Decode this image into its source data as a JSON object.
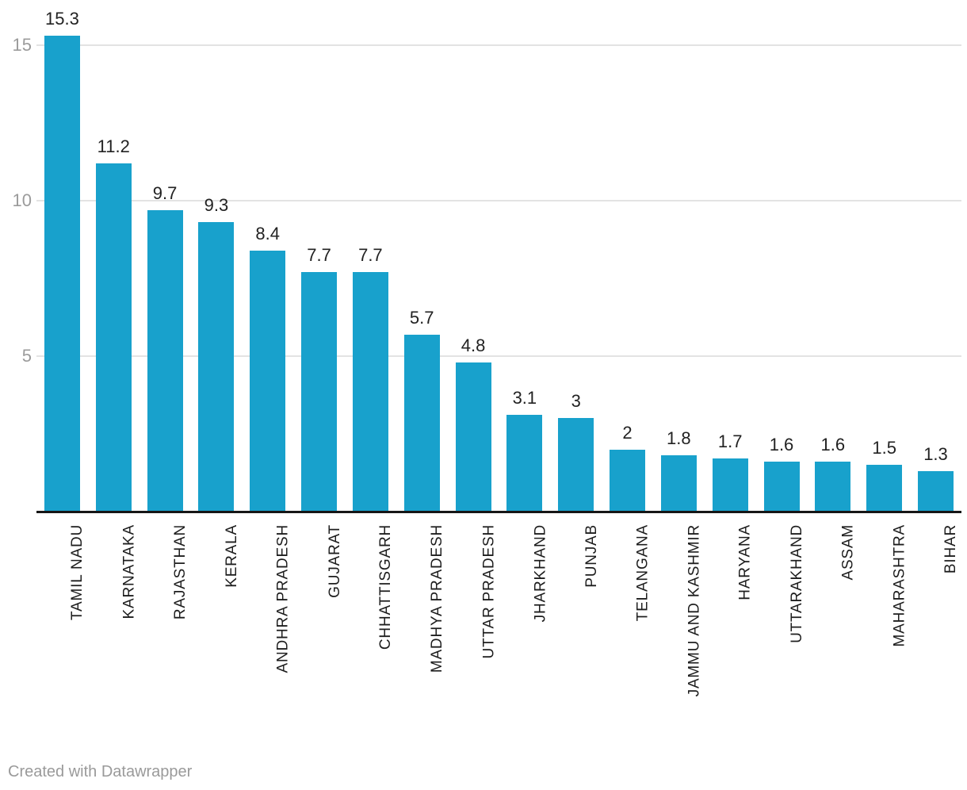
{
  "chart_data": {
    "type": "bar",
    "categories": [
      "TAMIL NADU",
      "KARNATAKA",
      "RAJASTHAN",
      "KERALA",
      "ANDHRA PRADESH",
      "GUJARAT",
      "CHHATTISGARH",
      "MADHYA PRADESH",
      "UTTAR PRADESH",
      "JHARKHAND",
      "PUNJAB",
      "TELANGANA",
      "JAMMU AND KASHMIR",
      "HARYANA",
      "UTTARAKHAND",
      "ASSAM",
      "MAHARASHTRA",
      "BIHAR"
    ],
    "values": [
      15.3,
      11.2,
      9.7,
      9.3,
      8.4,
      7.7,
      7.7,
      5.7,
      4.8,
      3.1,
      3,
      2,
      1.8,
      1.7,
      1.6,
      1.6,
      1.5,
      1.3
    ],
    "value_labels": [
      "15.3",
      "11.2",
      "9.7",
      "9.3",
      "8.4",
      "7.7",
      "7.7",
      "5.7",
      "4.8",
      "3.1",
      "3",
      "2",
      "1.8",
      "1.7",
      "1.6",
      "1.6",
      "1.5",
      "1.3"
    ],
    "title": "",
    "xlabel": "",
    "ylabel": "",
    "yticks": [
      5,
      10,
      15
    ],
    "ylim": [
      0,
      16.45
    ],
    "grid": "horizontal",
    "legend": "none",
    "category_label_rotation": -90,
    "bar_color": "#18a1cc",
    "axis_color": "#161616",
    "grid_color": "#e3e3e3",
    "tick_label_color": "#9b9b9b",
    "value_label_color": "#222222",
    "category_label_color": "#1d1d1d"
  },
  "footer": {
    "text": "Created with Datawrapper"
  }
}
